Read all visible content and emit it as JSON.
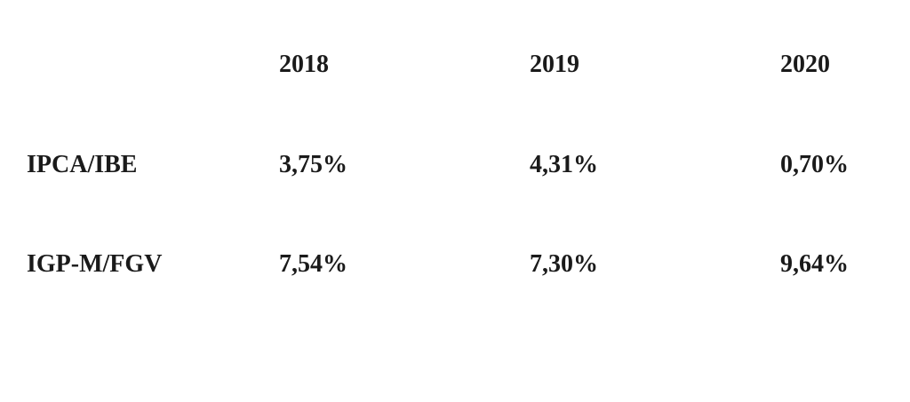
{
  "table": {
    "header": [
      "2018",
      "2019",
      "2020"
    ],
    "rows": [
      [
        "IPCA/IBE",
        "3,75%",
        "4,31%",
        "0,70%"
      ],
      [
        "IGP-M/FGV",
        "7,54%",
        "7,30%",
        "9,64%"
      ]
    ]
  }
}
